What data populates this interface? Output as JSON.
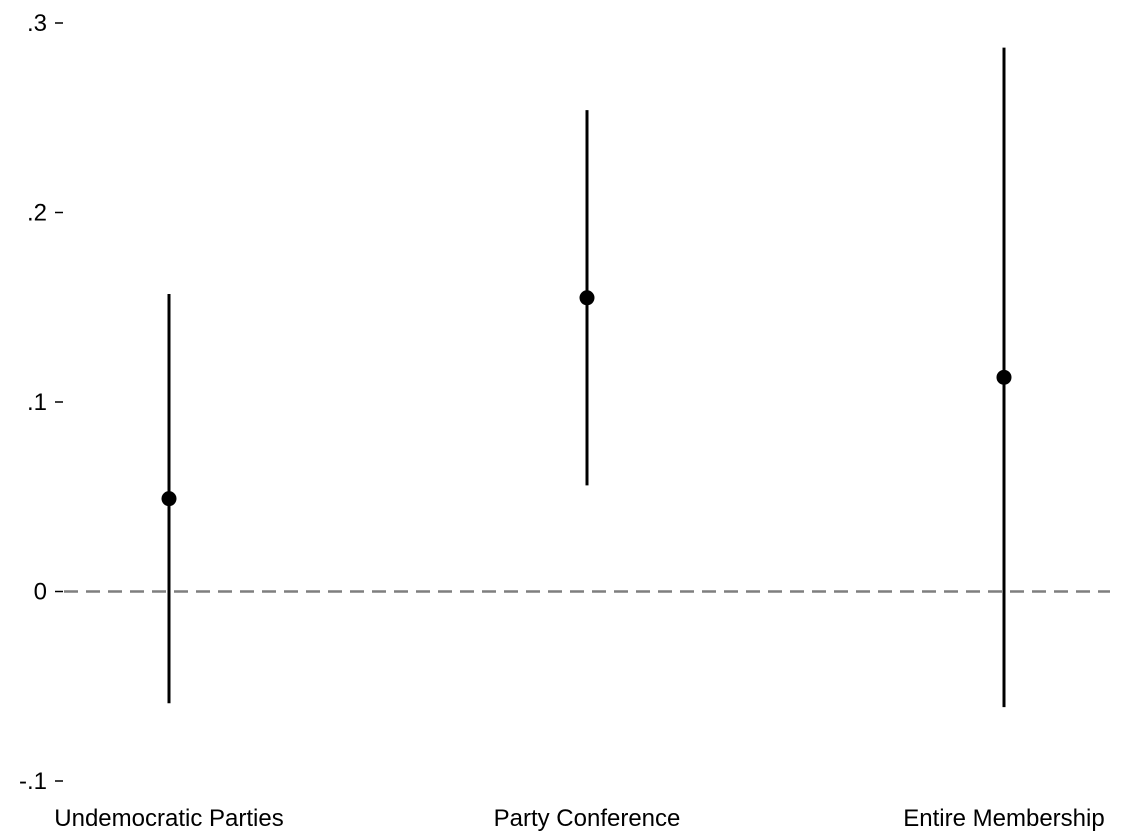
{
  "chart_data": {
    "type": "scatter",
    "subtype": "point-estimate-with-confidence-interval",
    "title": "",
    "xlabel": "",
    "ylabel": "",
    "categories": [
      "Undemocratic Parties",
      "Party Conference",
      "Entire Membership"
    ],
    "estimates": [
      0.049,
      0.155,
      0.113
    ],
    "ci_lower": [
      -0.059,
      0.056,
      -0.061
    ],
    "ci_upper": [
      0.157,
      0.254,
      0.287
    ],
    "ylim": [
      -0.1,
      0.3
    ],
    "yticks": [
      -0.1,
      0,
      0.1,
      0.2,
      0.3
    ],
    "ytick_labels": [
      "-.1",
      "0",
      ".1",
      ".2",
      ".3"
    ],
    "reference_line": {
      "y": 0,
      "style": "dashed",
      "color": "#7f7f7f"
    },
    "marker_color": "#000000",
    "grid": false,
    "legend": "none"
  }
}
